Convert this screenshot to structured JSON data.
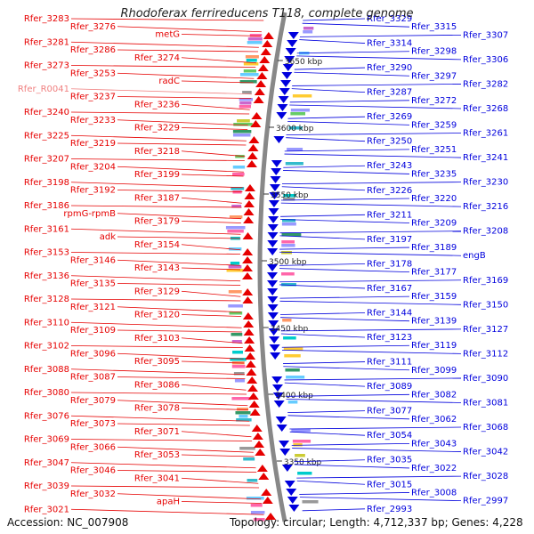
{
  "title": "Rhodoferax ferrireducens T118, complete genome",
  "footer": {
    "accession": "Accession: NC_007908",
    "summary": "Topology: circular; Length: 4,712,337 bp; Genes: 4,228"
  },
  "colors": {
    "forward": "#e60000",
    "reverse": "#0000dd",
    "rna": "#f08080",
    "ring": "#888888"
  },
  "kbp_ticks": [
    "3650 kbp",
    "3600 kbp",
    "3550 kbp",
    "3500 kbp",
    "3450 kbp",
    "3400 kbp",
    "3350 kbp"
  ],
  "left_labels": [
    {
      "text": "Rfer_3283",
      "color": "forward"
    },
    {
      "text": "Rfer_3276",
      "color": "forward"
    },
    {
      "text": "metG",
      "color": "forward"
    },
    {
      "text": "Rfer_3281",
      "color": "forward"
    },
    {
      "text": "Rfer_3286",
      "color": "forward"
    },
    {
      "text": "Rfer_3274",
      "color": "forward"
    },
    {
      "text": "Rfer_3273",
      "color": "forward"
    },
    {
      "text": "Rfer_3253",
      "color": "forward"
    },
    {
      "text": "radC",
      "color": "forward"
    },
    {
      "text": "Rfer_R0041",
      "color": "rna"
    },
    {
      "text": "Rfer_3237",
      "color": "forward"
    },
    {
      "text": "Rfer_3236",
      "color": "forward"
    },
    {
      "text": "Rfer_3240",
      "color": "forward"
    },
    {
      "text": "Rfer_3233",
      "color": "forward"
    },
    {
      "text": "Rfer_3229",
      "color": "forward"
    },
    {
      "text": "Rfer_3225",
      "color": "forward"
    },
    {
      "text": "Rfer_3219",
      "color": "forward"
    },
    {
      "text": "Rfer_3218",
      "color": "forward"
    },
    {
      "text": "Rfer_3207",
      "color": "forward"
    },
    {
      "text": "Rfer_3204",
      "color": "forward"
    },
    {
      "text": "Rfer_3199",
      "color": "forward"
    },
    {
      "text": "Rfer_3198",
      "color": "forward"
    },
    {
      "text": "Rfer_3192",
      "color": "forward"
    },
    {
      "text": "Rfer_3187",
      "color": "forward"
    },
    {
      "text": "Rfer_3186",
      "color": "forward"
    },
    {
      "text": "rpmG-rpmB",
      "color": "forward"
    },
    {
      "text": "Rfer_3179",
      "color": "forward"
    },
    {
      "text": "Rfer_3161",
      "color": "forward"
    },
    {
      "text": "adk",
      "color": "forward"
    },
    {
      "text": "Rfer_3154",
      "color": "forward"
    },
    {
      "text": "Rfer_3153",
      "color": "forward"
    },
    {
      "text": "Rfer_3146",
      "color": "forward"
    },
    {
      "text": "Rfer_3143",
      "color": "forward"
    },
    {
      "text": "Rfer_3136",
      "color": "forward"
    },
    {
      "text": "Rfer_3135",
      "color": "forward"
    },
    {
      "text": "Rfer_3129",
      "color": "forward"
    },
    {
      "text": "Rfer_3128",
      "color": "forward"
    },
    {
      "text": "Rfer_3121",
      "color": "forward"
    },
    {
      "text": "Rfer_3120",
      "color": "forward"
    },
    {
      "text": "Rfer_3110",
      "color": "forward"
    },
    {
      "text": "Rfer_3109",
      "color": "forward"
    },
    {
      "text": "Rfer_3103",
      "color": "forward"
    },
    {
      "text": "Rfer_3102",
      "color": "forward"
    },
    {
      "text": "Rfer_3096",
      "color": "forward"
    },
    {
      "text": "Rfer_3095",
      "color": "forward"
    },
    {
      "text": "Rfer_3088",
      "color": "forward"
    },
    {
      "text": "Rfer_3087",
      "color": "forward"
    },
    {
      "text": "Rfer_3086",
      "color": "forward"
    },
    {
      "text": "Rfer_3080",
      "color": "forward"
    },
    {
      "text": "Rfer_3079",
      "color": "forward"
    },
    {
      "text": "Rfer_3078",
      "color": "forward"
    },
    {
      "text": "Rfer_3076",
      "color": "forward"
    },
    {
      "text": "Rfer_3073",
      "color": "forward"
    },
    {
      "text": "Rfer_3071",
      "color": "forward"
    },
    {
      "text": "Rfer_3069",
      "color": "forward"
    },
    {
      "text": "Rfer_3066",
      "color": "forward"
    },
    {
      "text": "Rfer_3053",
      "color": "forward"
    },
    {
      "text": "Rfer_3047",
      "color": "forward"
    },
    {
      "text": "Rfer_3046",
      "color": "forward"
    },
    {
      "text": "Rfer_3041",
      "color": "forward"
    },
    {
      "text": "Rfer_3039",
      "color": "forward"
    },
    {
      "text": "Rfer_3032",
      "color": "forward"
    },
    {
      "text": "apaH",
      "color": "forward"
    },
    {
      "text": "Rfer_3021",
      "color": "forward"
    }
  ],
  "right_labels": [
    {
      "text": "Rfer_3329"
    },
    {
      "text": "Rfer_3315"
    },
    {
      "text": "Rfer_3307"
    },
    {
      "text": "Rfer_3314"
    },
    {
      "text": "Rfer_3298"
    },
    {
      "text": "Rfer_3306"
    },
    {
      "text": "Rfer_3290"
    },
    {
      "text": "Rfer_3297"
    },
    {
      "text": "Rfer_3282"
    },
    {
      "text": "Rfer_3287"
    },
    {
      "text": "Rfer_3272"
    },
    {
      "text": "Rfer_3268"
    },
    {
      "text": "Rfer_3269"
    },
    {
      "text": "Rfer_3259"
    },
    {
      "text": "Rfer_3261"
    },
    {
      "text": "Rfer_3250"
    },
    {
      "text": "Rfer_3251"
    },
    {
      "text": "Rfer_3241"
    },
    {
      "text": "Rfer_3243"
    },
    {
      "text": "Rfer_3235"
    },
    {
      "text": "Rfer_3230"
    },
    {
      "text": "Rfer_3226"
    },
    {
      "text": "Rfer_3220"
    },
    {
      "text": "Rfer_3216"
    },
    {
      "text": "Rfer_3211"
    },
    {
      "text": "Rfer_3209"
    },
    {
      "text": "Rfer_3208"
    },
    {
      "text": "Rfer_3197"
    },
    {
      "text": "Rfer_3189"
    },
    {
      "text": "engB"
    },
    {
      "text": "Rfer_3178"
    },
    {
      "text": "Rfer_3177"
    },
    {
      "text": "Rfer_3169"
    },
    {
      "text": "Rfer_3167"
    },
    {
      "text": "Rfer_3159"
    },
    {
      "text": "Rfer_3150"
    },
    {
      "text": "Rfer_3144"
    },
    {
      "text": "Rfer_3139"
    },
    {
      "text": "Rfer_3127"
    },
    {
      "text": "Rfer_3123"
    },
    {
      "text": "Rfer_3119"
    },
    {
      "text": "Rfer_3112"
    },
    {
      "text": "Rfer_3111"
    },
    {
      "text": "Rfer_3099"
    },
    {
      "text": "Rfer_3090"
    },
    {
      "text": "Rfer_3089"
    },
    {
      "text": "Rfer_3082"
    },
    {
      "text": "Rfer_3081"
    },
    {
      "text": "Rfer_3077"
    },
    {
      "text": "Rfer_3062"
    },
    {
      "text": "Rfer_3068"
    },
    {
      "text": "Rfer_3054"
    },
    {
      "text": "Rfer_3043"
    },
    {
      "text": "Rfer_3042"
    },
    {
      "text": "Rfer_3035"
    },
    {
      "text": "Rfer_3022"
    },
    {
      "text": "Rfer_3028"
    },
    {
      "text": "Rfer_3015"
    },
    {
      "text": "Rfer_3008"
    },
    {
      "text": "Rfer_2997"
    },
    {
      "text": "Rfer_2993"
    }
  ]
}
